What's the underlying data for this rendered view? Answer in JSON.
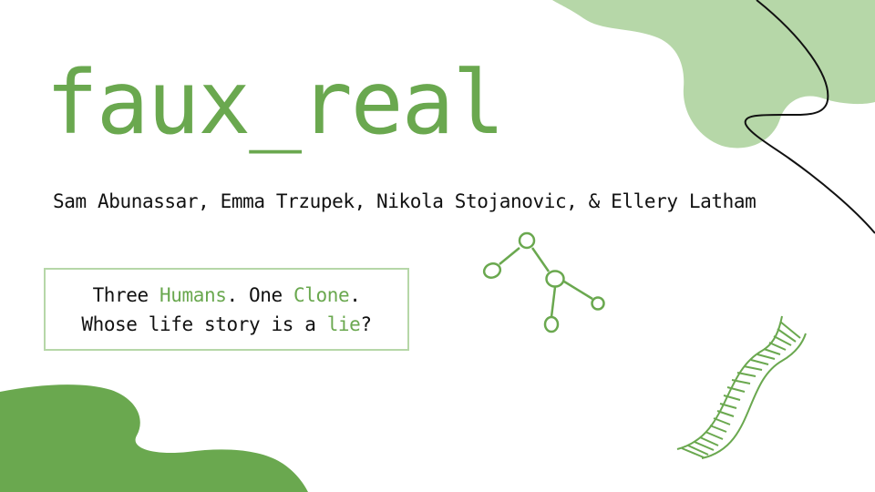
{
  "slide": {
    "title": "faux_real",
    "authors": "Sam Abunassar, Emma Trzupek, Nikola Stojanovic, & Ellery Latham",
    "tagline": {
      "line1": {
        "part1": "Three ",
        "humans": "Humans",
        "part2": ". One ",
        "clone": "Clone",
        "part3": "."
      },
      "line2": {
        "part1": "Whose life story is a ",
        "lie": "lie",
        "part2": "?"
      }
    }
  },
  "colors": {
    "accent_green": "#6aa84f",
    "light_green": "#b6d7a8",
    "text": "#111111",
    "background": "#ffffff"
  },
  "icons": [
    "blob-top-right",
    "blob-bottom-left",
    "curve-line",
    "molecule-icon",
    "dna-icon"
  ]
}
